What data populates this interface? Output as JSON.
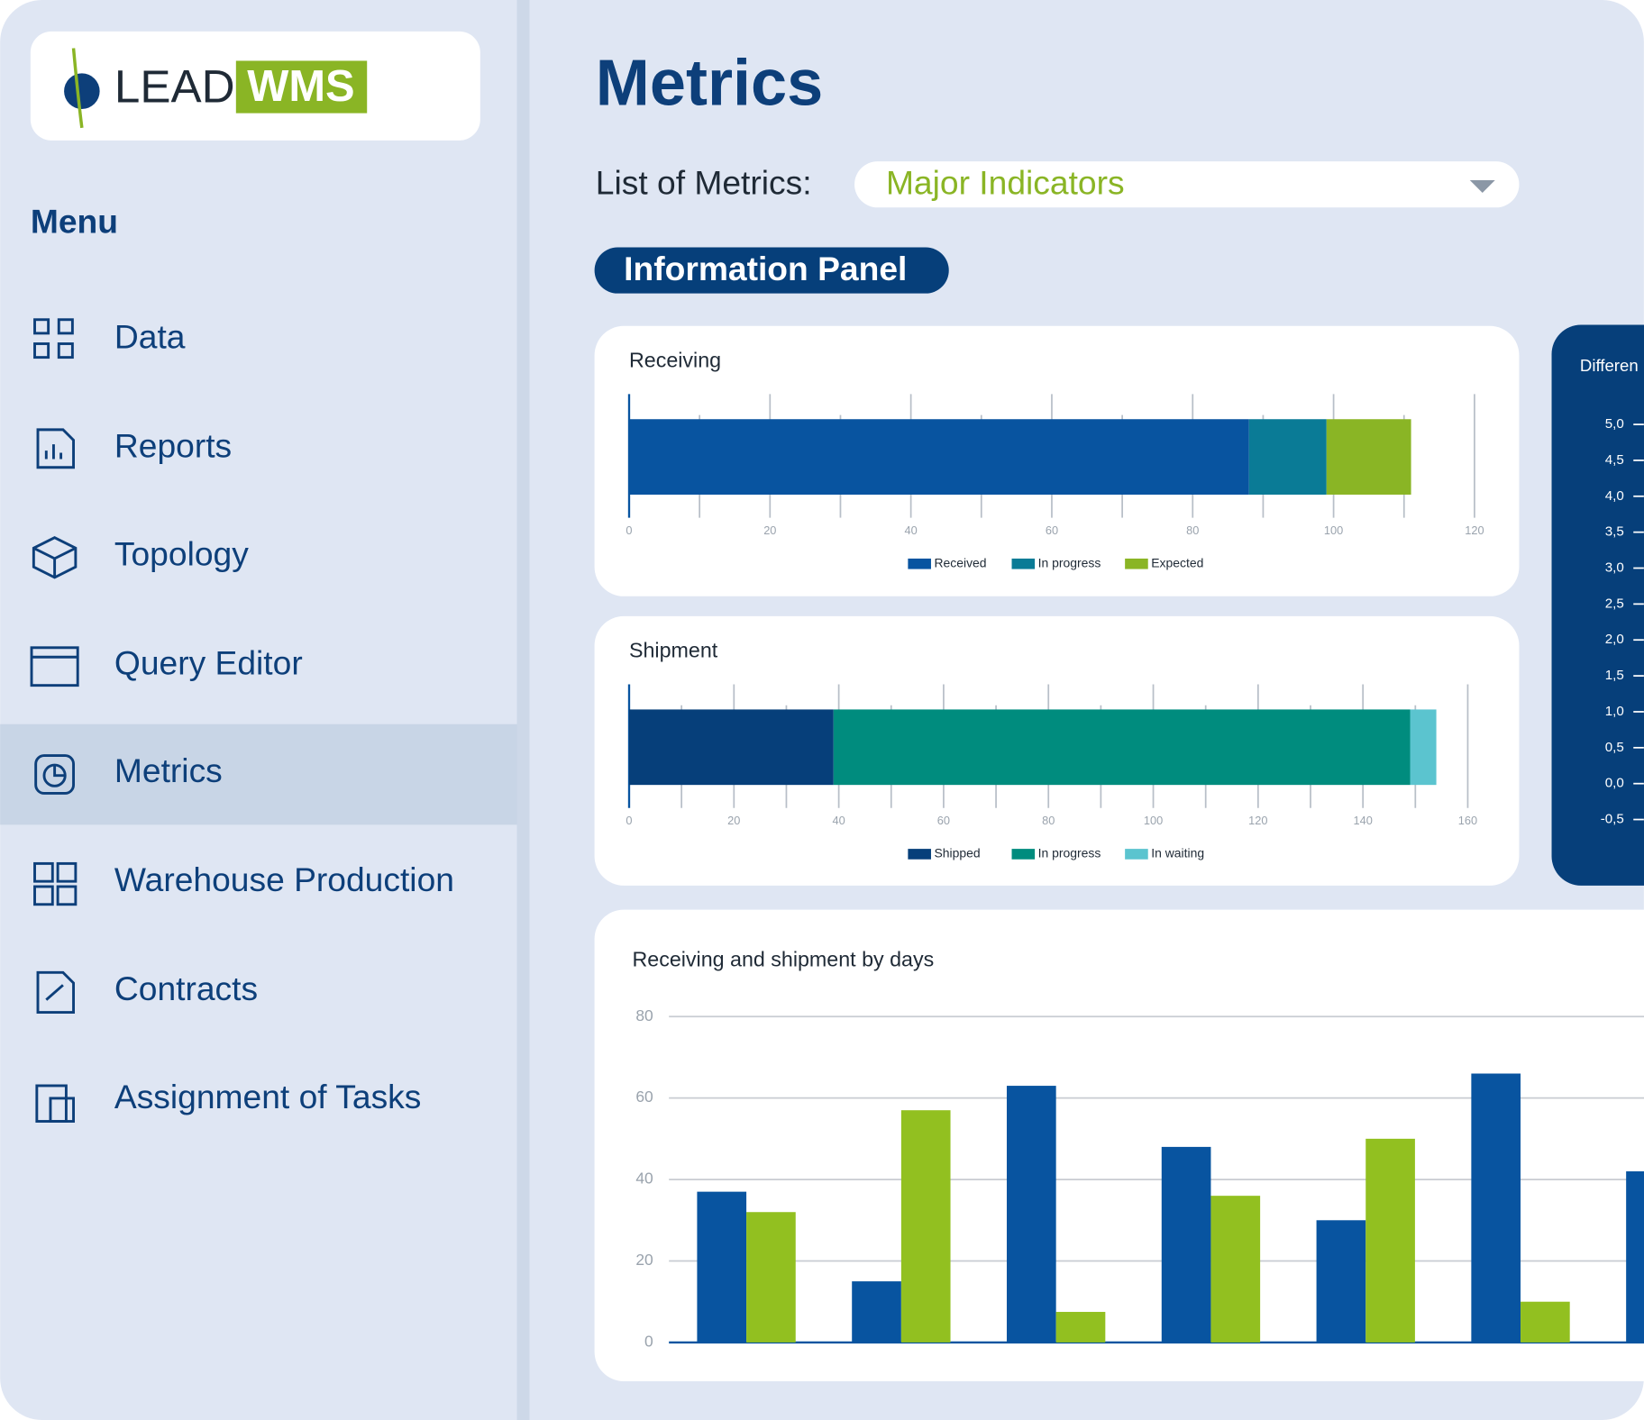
{
  "logo": {
    "lead": "LEAD",
    "wms": "WMS"
  },
  "menu": {
    "title": "Menu",
    "items": [
      "Data",
      "Reports",
      "Topology",
      "Query Editor",
      "Metrics",
      "Warehouse Production",
      "Contracts",
      "Assignment of Tasks"
    ]
  },
  "header": {
    "title": "Metrics",
    "list_label": "List of Metrics:",
    "selected_list": "Major Indicators",
    "panel_button": "Information Panel"
  },
  "chart_data": [
    {
      "type": "bar",
      "title": "Receiving",
      "horizontal": true,
      "stacked": true,
      "categories": [
        null
      ],
      "series": [
        {
          "name": "Received",
          "color": "#0854a0",
          "values": [
            88
          ]
        },
        {
          "name": "In progress",
          "color": "#0a7b96",
          "values": [
            11
          ]
        },
        {
          "name": "Expected",
          "color": "#8ab525",
          "values": [
            12
          ]
        }
      ],
      "xlim": [
        0,
        120
      ],
      "xticks": [
        0,
        20,
        40,
        60,
        80,
        100,
        120
      ]
    },
    {
      "type": "bar",
      "title": "Shipment",
      "horizontal": true,
      "stacked": true,
      "categories": [
        null
      ],
      "series": [
        {
          "name": "Shipped",
          "color": "#063f7a",
          "values": [
            39
          ]
        },
        {
          "name": "In progress",
          "color": "#008c7e",
          "values": [
            110
          ]
        },
        {
          "name": "In waiting",
          "color": "#5bc4cf",
          "values": [
            5
          ]
        }
      ],
      "xlim": [
        0,
        160
      ],
      "xticks": [
        0,
        20,
        40,
        60,
        80,
        100,
        120,
        140,
        160
      ]
    },
    {
      "type": "bar",
      "title": "Differen",
      "ylim": [
        -0.5,
        5
      ],
      "yticks": [
        {
          "value": 5,
          "label": "5,0"
        },
        {
          "value": 4.5,
          "label": "4,5"
        },
        {
          "value": 4,
          "label": "4,0"
        },
        {
          "value": 3.5,
          "label": "3,5"
        },
        {
          "value": 3,
          "label": "3,0"
        },
        {
          "value": 2.5,
          "label": "2,5"
        },
        {
          "value": 2,
          "label": "2,0"
        },
        {
          "value": 1.5,
          "label": "1,5"
        },
        {
          "value": 1,
          "label": "1,0"
        },
        {
          "value": 0.5,
          "label": "0,5"
        },
        {
          "value": 0,
          "label": "0,0"
        },
        {
          "value": -0.5,
          "label": "-0,5"
        }
      ]
    },
    {
      "type": "bar",
      "title": "Receiving and shipment by days",
      "grid": true,
      "categories": [
        null,
        null,
        null,
        null,
        null,
        null,
        null,
        null
      ],
      "series": [
        {
          "color": "#0854a0",
          "values": [
            37,
            15,
            63,
            48,
            30,
            66,
            42,
            null
          ]
        },
        {
          "color": "#92c020",
          "values": [
            32,
            57,
            7.5,
            36,
            50,
            10,
            null,
            null
          ]
        }
      ],
      "ylim": [
        0,
        80
      ],
      "yticks": [
        0,
        20,
        40,
        60,
        80
      ]
    }
  ]
}
